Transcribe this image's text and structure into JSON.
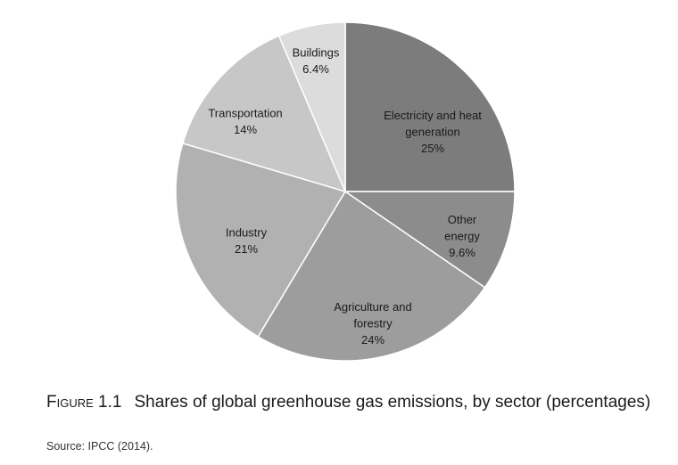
{
  "chart_data": {
    "type": "pie",
    "slices": [
      {
        "lines": [
          "Electricity and heat",
          "generation",
          "25%"
        ],
        "value": 25,
        "color": "#7c7c7d"
      },
      {
        "lines": [
          "Other",
          "energy",
          "9.6%"
        ],
        "value": 9.6,
        "color": "#8c8c8d"
      },
      {
        "lines": [
          "Agriculture and",
          "forestry",
          "24%"
        ],
        "value": 24,
        "color": "#9d9d9e"
      },
      {
        "lines": [
          "Industry",
          "21%"
        ],
        "value": 21,
        "color": "#b1b1b2"
      },
      {
        "lines": [
          "Transportation",
          "14%"
        ],
        "value": 14,
        "color": "#c7c7c8"
      },
      {
        "lines": [
          "Buildings",
          "6.4%"
        ],
        "value": 6.4,
        "color": "#dcdcdd"
      }
    ],
    "start_angle_deg": 0,
    "direction": "clockwise"
  },
  "caption": {
    "figure_number": "Figure 1.1",
    "title": "Shares of global greenhouse gas emissions, by sector (percentages)"
  },
  "source": "Source: IPCC (2014)."
}
